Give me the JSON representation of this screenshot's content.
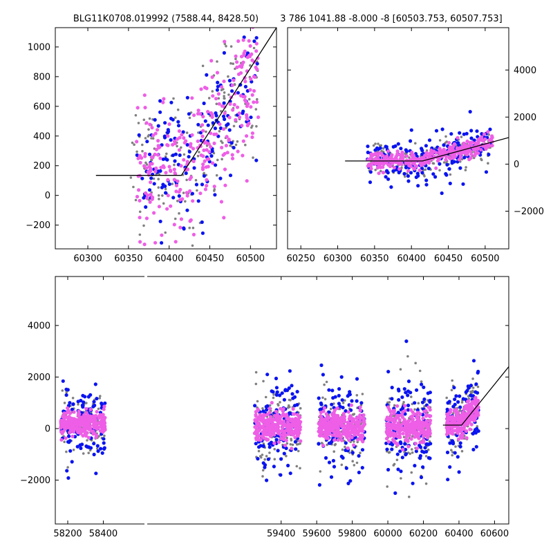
{
  "chart_data": [
    {
      "id": "top-left",
      "type": "scatter",
      "title": "BLG11K0708.019992 (7588.44, 8428.50)",
      "xlabel": "",
      "ylabel": "",
      "xlim": [
        60260,
        60532
      ],
      "ylim": [
        -360,
        1130
      ],
      "xticks": [
        60300,
        60350,
        60400,
        60450,
        60500
      ],
      "yticks": [
        -200,
        0,
        200,
        400,
        600,
        800,
        1000
      ],
      "y_axis_side": "left",
      "grid": false,
      "model_line": {
        "x": [
          60310,
          60415,
          60532
        ],
        "y": [
          135,
          135,
          1130
        ]
      },
      "series": [
        {
          "color": "#808080",
          "x_range": [
            60350,
            60510
          ],
          "y_center": 330,
          "y_spread": 420,
          "n": 180
        },
        {
          "color": "#0a14f0",
          "x_range": [
            60360,
            60510
          ],
          "y_center": 340,
          "y_spread": 420,
          "n": 160
        },
        {
          "color": "#ee5ee6",
          "x_range": [
            60360,
            60510
          ],
          "y_center": 360,
          "y_spread": 400,
          "n": 280
        }
      ]
    },
    {
      "id": "top-right",
      "type": "scatter",
      "title": "3 786 1041.88 -8.000 -8 [60503.753, 60507.753]",
      "xlabel": "",
      "ylabel": "",
      "xlim": [
        60232,
        60532
      ],
      "ylim": [
        -3600,
        5800
      ],
      "xticks": [
        60250,
        60300,
        60350,
        60400,
        60450,
        60500
      ],
      "yticks": [
        -2000,
        0,
        2000,
        4000
      ],
      "y_axis_side": "right",
      "grid": false,
      "model_line": {
        "x": [
          60310,
          60415,
          60532
        ],
        "y": [
          135,
          135,
          1130
        ]
      },
      "series": [
        {
          "color": "#808080",
          "x_range": [
            60340,
            60510
          ],
          "y_center": 150,
          "y_spread": 700,
          "n": 180
        },
        {
          "color": "#0a14f0",
          "x_range": [
            60340,
            60510
          ],
          "y_center": 150,
          "y_spread": 1100,
          "n": 170
        },
        {
          "color": "#ee5ee6",
          "x_range": [
            60340,
            60510
          ],
          "y_center": 200,
          "y_spread": 350,
          "n": 320
        }
      ]
    },
    {
      "id": "bottom",
      "type": "scatter",
      "title": "",
      "xlabel": "",
      "ylabel": "",
      "xlim": [
        58130,
        60680
      ],
      "ylim": [
        -3700,
        5900
      ],
      "xticks": [
        58200,
        58400,
        59400,
        59600,
        59800,
        60000,
        60200,
        60400,
        60600
      ],
      "yticks": [
        -2000,
        0,
        2000,
        4000
      ],
      "y_axis_side": "left",
      "grid": false,
      "model_line": {
        "x": [
          60310,
          60415,
          60680
        ],
        "y": [
          135,
          135,
          2400
        ]
      },
      "seasons": [
        {
          "x_range": [
            58160,
            58410
          ],
          "y_center": 200,
          "y_spread": 650,
          "n": 520
        },
        {
          "x_range": [
            59250,
            59510
          ],
          "y_center": 80,
          "y_spread": 850,
          "n": 520
        },
        {
          "x_range": [
            59610,
            59870
          ],
          "y_center": 80,
          "y_spread": 800,
          "n": 520
        },
        {
          "x_range": [
            59990,
            60240
          ],
          "y_center": 80,
          "y_spread": 900,
          "n": 520
        },
        {
          "x_range": [
            60330,
            60510
          ],
          "y_center": 200,
          "y_spread": 700,
          "n": 440
        }
      ],
      "series_colors": [
        "#808080",
        "#0a14f0",
        "#ee5ee6"
      ]
    }
  ]
}
